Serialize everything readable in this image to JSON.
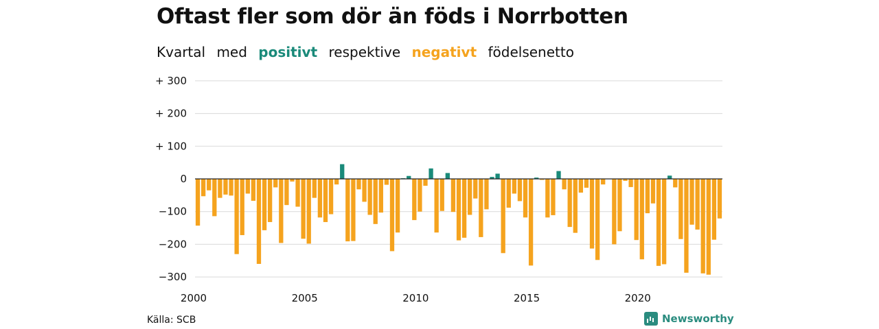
{
  "header": {
    "title": "Oftast fler som dör än föds i Norrbotten",
    "subtitle_parts": {
      "p1": "Kvartal",
      "p2": "med",
      "positive": "positivt",
      "p3": "respektive",
      "negative": "negativt",
      "p4": "födelsenetto"
    }
  },
  "footer": {
    "source": "Källa: SCB",
    "brand": "Newsworthy"
  },
  "colors": {
    "positive": "#1a8a7a",
    "negative": "#f5a31e",
    "grid": "#d9d9d9",
    "zero": "#222222"
  },
  "chart_data": {
    "type": "bar",
    "title": "Oftast fler som dör än föds i Norrbotten",
    "subtitle": "Kvartal med positivt respektive negativt födelsenetto",
    "xlabel": "",
    "ylabel": "",
    "ylim": [
      -320,
      300
    ],
    "yticks": [
      300,
      200,
      100,
      0,
      -100,
      -200,
      -300
    ],
    "ytick_labels": [
      "+ 300",
      "+ 200",
      "+ 100",
      "0",
      "−100",
      "−200",
      "−300"
    ],
    "xticks": [
      2000,
      2005,
      2010,
      2015,
      2020
    ],
    "xtick_labels": [
      "2000",
      "2005",
      "2010",
      "2015",
      "2020"
    ],
    "start_year": 2000,
    "grid": true,
    "values": [
      -143,
      -53,
      -35,
      -114,
      -58,
      -48,
      -51,
      -230,
      -172,
      -45,
      -67,
      -260,
      -157,
      -132,
      -26,
      -196,
      -80,
      -8,
      -85,
      -183,
      -198,
      -58,
      -118,
      -132,
      -108,
      -17,
      45,
      -191,
      -190,
      -32,
      -70,
      -110,
      -138,
      -103,
      -18,
      -221,
      -164,
      2,
      9,
      -126,
      -100,
      -21,
      32,
      -164,
      -98,
      18,
      -101,
      -188,
      -180,
      -110,
      -60,
      -178,
      -93,
      6,
      16,
      -227,
      -88,
      -45,
      -68,
      -118,
      -265,
      4,
      -3,
      -118,
      -111,
      24,
      -32,
      -147,
      -165,
      -42,
      -27,
      -213,
      -248,
      -17,
      0,
      -200,
      -160,
      -6,
      -25,
      -187,
      -246,
      -105,
      -75,
      -266,
      -261,
      10,
      -26,
      -184,
      -287,
      -140,
      -155,
      -289,
      -293,
      -186,
      -121
    ]
  }
}
